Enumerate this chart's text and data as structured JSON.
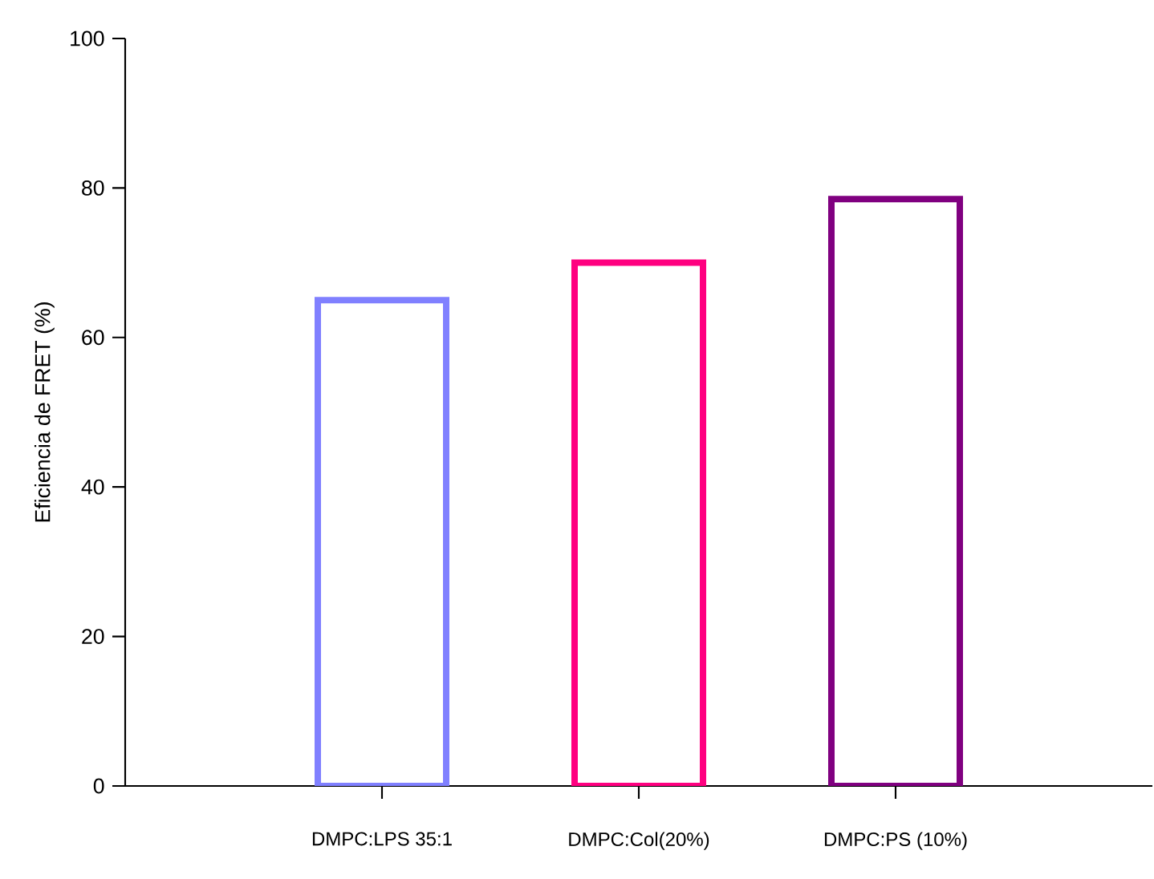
{
  "chart_data": {
    "type": "bar",
    "ylabel": "Eficiencia de FRET (%)",
    "categories": [
      "DMPC:LPS 35:1",
      "DMPC:Col(20%)",
      "DMPC:PS (10%)"
    ],
    "values": [
      65,
      70,
      78.5
    ],
    "colors": [
      "#8080ff",
      "#ff0080",
      "#800080"
    ],
    "ylim": [
      0,
      100
    ],
    "yticks": [
      0,
      20,
      40,
      60,
      80,
      100
    ]
  }
}
